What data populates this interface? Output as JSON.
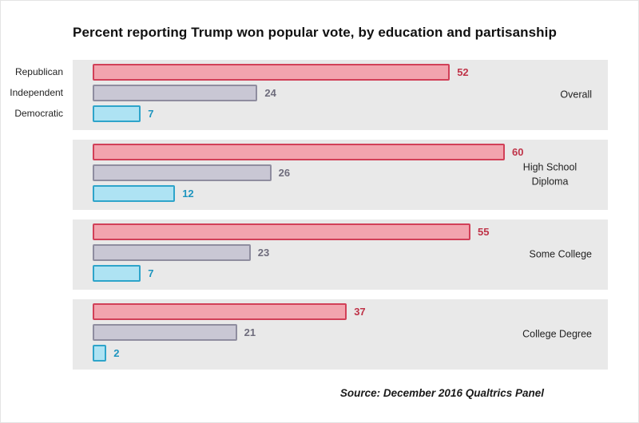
{
  "title": "Percent reporting Trump won popular vote, by education and partisanship",
  "source": "Source: December 2016 Qualtrics Panel",
  "colors": {
    "band_background": "#e9e9e9",
    "series": [
      {
        "name": "Republican",
        "fill": "#f2a4ae",
        "border": "#d14058",
        "text": "#bf3348"
      },
      {
        "name": "Independent",
        "fill": "#c9c7d4",
        "border": "#8f8d9f",
        "text": "#6e6c7c"
      },
      {
        "name": "Democratic",
        "fill": "#aee3f3",
        "border": "#2ea4ca",
        "text": "#1e95bf"
      }
    ]
  },
  "chart_data": {
    "type": "bar",
    "orientation": "horizontal",
    "title": "Percent reporting Trump won popular vote, by education and partisanship",
    "xlabel": "",
    "ylabel": "",
    "xlim": [
      0,
      75
    ],
    "grid": false,
    "legend_position": "none",
    "series_labels": [
      "Republican",
      "Independent",
      "Democratic"
    ],
    "groups": [
      {
        "label": "Overall",
        "values": [
          52,
          24,
          7
        ]
      },
      {
        "label": "High School Diploma",
        "values": [
          60,
          26,
          12
        ]
      },
      {
        "label": "Some College",
        "values": [
          55,
          23,
          7
        ]
      },
      {
        "label": "College Degree",
        "values": [
          37,
          21,
          2
        ]
      }
    ]
  }
}
